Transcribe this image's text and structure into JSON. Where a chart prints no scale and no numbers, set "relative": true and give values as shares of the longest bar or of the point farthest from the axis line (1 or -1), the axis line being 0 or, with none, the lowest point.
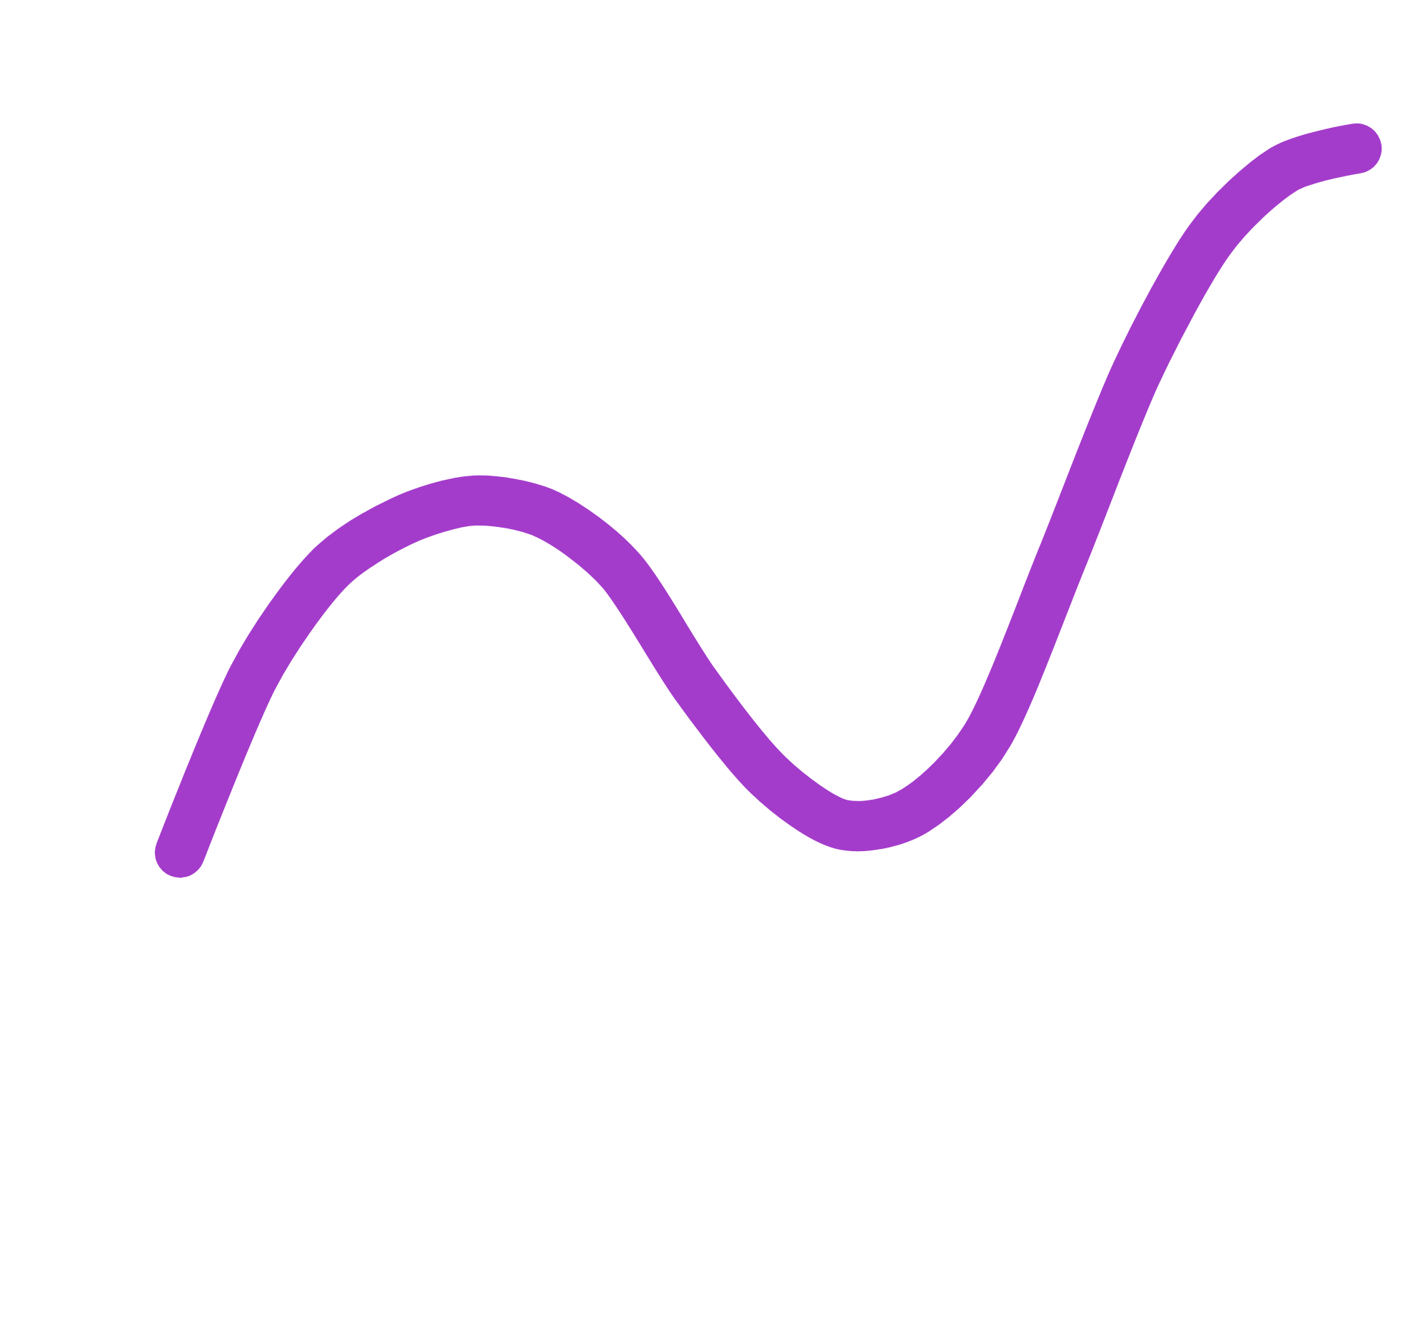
{
  "chart_data": {
    "type": "line",
    "relative": true,
    "marker": "none",
    "line_style": "solid",
    "categories": [
      null,
      null,
      null,
      null,
      null,
      null,
      null,
      null,
      null,
      null,
      null,
      null,
      null,
      null,
      null,
      null,
      null
    ],
    "series": [
      {
        "color": "#a43ccb",
        "values": [
          0,
          0.25,
          0.4,
          0.47,
          0.5,
          0.48,
          0.4,
          0.24,
          0.11,
          0.04,
          0.06,
          0.17,
          0.42,
          0.68,
          0.87,
          0.97,
          1
        ]
      }
    ]
  }
}
